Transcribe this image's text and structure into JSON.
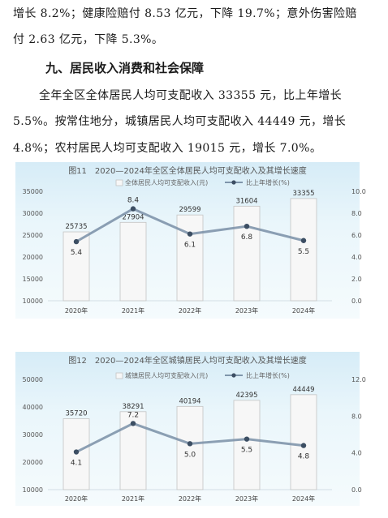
{
  "text": {
    "line1": "增长 8.2%；健康险赔付 8.53 亿元，下降 19.7%；意外伤害险赔",
    "line2": "付 2.63 亿元，下降 5.3%。",
    "heading": "九、居民收入消费和社会保障",
    "line3": "全年全区全体居民人均可支配收入 33355 元，比上年增长",
    "line4": "5.5%。按常住地分，城镇居民人均可支配收入 44449 元，增长",
    "line5": "4.8%；农村居民人均可支配收入 19015 元，增长 7.0%。"
  },
  "colors": {
    "bar": "#f7f7f7",
    "bar_edge": "#c4c4c4",
    "line": "#7f95ab",
    "marker": "#3c4e63"
  },
  "chart_data": [
    {
      "type": "bar",
      "title": "图11　2020—2024年全区全体居民人均可支配收入及其增长速度",
      "categories": [
        "2020年",
        "2021年",
        "2022年",
        "2023年",
        "2024年"
      ],
      "series": [
        {
          "name": "全体居民人均可支配收入(元)",
          "type": "bar",
          "axis": "left",
          "values": [
            25735,
            27904,
            29599,
            31604,
            33355
          ],
          "labels": [
            "25735",
            "27904",
            "29599",
            "31604",
            "33355"
          ]
        },
        {
          "name": "比上年增长(%)",
          "type": "line",
          "axis": "right",
          "values": [
            5.4,
            8.4,
            6.1,
            6.8,
            5.5
          ],
          "labels": [
            "5.4",
            "8.4",
            "6.1",
            "6.8",
            "5.5"
          ]
        }
      ],
      "yleft": {
        "min": 10000,
        "max": 35000,
        "ticks": [
          "35000",
          "30000",
          "25000",
          "20000",
          "15000",
          "10000"
        ]
      },
      "yright": {
        "min": 0,
        "max": 10,
        "ticks": [
          "10.0",
          "8.0",
          "6.0",
          "4.0",
          "2.0",
          "0.0"
        ]
      }
    },
    {
      "type": "bar",
      "title": "图12　2020—2024年全区城镇居民人均可支配收入及其增长速度",
      "categories": [
        "2020年",
        "2021年",
        "2022年",
        "2023年",
        "2024年"
      ],
      "series": [
        {
          "name": "城镇居民人均可支配收入(元)",
          "type": "bar",
          "axis": "left",
          "values": [
            35720,
            38291,
            40194,
            42395,
            44449
          ],
          "labels": [
            "35720",
            "38291",
            "40194",
            "42395",
            "44449"
          ]
        },
        {
          "name": "比上年增长(%)",
          "type": "line",
          "axis": "right",
          "values": [
            4.1,
            7.2,
            5.0,
            5.5,
            4.8
          ],
          "labels": [
            "4.1",
            "7.2",
            "5.0",
            "5.5",
            "4.8"
          ]
        }
      ],
      "yleft": {
        "min": 10000,
        "max": 50000,
        "ticks": [
          "50000",
          "40000",
          "30000",
          "20000",
          "10000"
        ]
      },
      "yright": {
        "min": 0,
        "max": 12,
        "ticks": [
          "12.0",
          "8.0",
          "4.0",
          "0.0"
        ]
      }
    }
  ]
}
